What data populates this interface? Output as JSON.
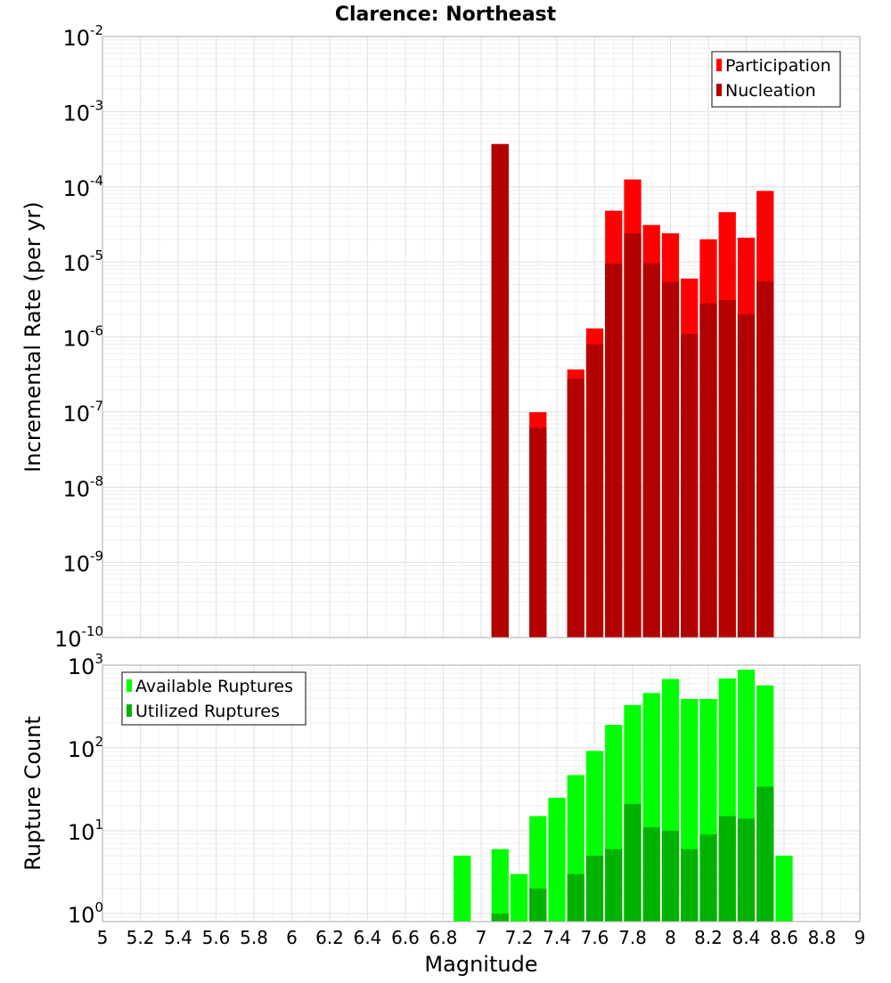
{
  "chart_data": [
    {
      "type": "bar",
      "title": "Clarence: Northeast",
      "xlabel": "",
      "ylabel": "Incremental Rate (per yr)",
      "yscale": "log",
      "ylim": [
        1e-10,
        0.01
      ],
      "xlim": [
        5,
        9
      ],
      "grid": true,
      "legend_position": "top-right",
      "y_tick_labels": [
        {
          "base": "10",
          "exp": "-10"
        },
        {
          "base": "10",
          "exp": "-9"
        },
        {
          "base": "10",
          "exp": "-8"
        },
        {
          "base": "10",
          "exp": "-7"
        },
        {
          "base": "10",
          "exp": "-6"
        },
        {
          "base": "10",
          "exp": "-5"
        },
        {
          "base": "10",
          "exp": "-4"
        },
        {
          "base": "10",
          "exp": "-3"
        },
        {
          "base": "10",
          "exp": "-2"
        }
      ],
      "series": [
        {
          "name": "Participation",
          "color": "#ff0000",
          "points": [
            [
              7.1,
              0.00037
            ],
            [
              7.3,
              1e-07
            ],
            [
              7.5,
              3.7e-07
            ],
            [
              7.6,
              1.3e-06
            ],
            [
              7.7,
              4.8e-05
            ],
            [
              7.8,
              0.000125
            ],
            [
              7.9,
              3.1e-05
            ],
            [
              8.0,
              2.4e-05
            ],
            [
              8.1,
              6e-06
            ],
            [
              8.2,
              2e-05
            ],
            [
              8.3,
              4.6e-05
            ],
            [
              8.4,
              2.1e-05
            ],
            [
              8.5,
              8.8e-05
            ]
          ]
        },
        {
          "name": "Nucleation",
          "color": "#b30000",
          "points": [
            [
              7.1,
              0.00037
            ],
            [
              7.3,
              6.2e-08
            ],
            [
              7.5,
              2.8e-07
            ],
            [
              7.6,
              8e-07
            ],
            [
              7.7,
              9.5e-06
            ],
            [
              7.8,
              2.4e-05
            ],
            [
              7.9,
              9.6e-06
            ],
            [
              8.0,
              5.4e-06
            ],
            [
              8.1,
              1.1e-06
            ],
            [
              8.2,
              2.8e-06
            ],
            [
              8.3,
              3.1e-06
            ],
            [
              8.4,
              2e-06
            ],
            [
              8.5,
              5.5e-06
            ]
          ]
        }
      ]
    },
    {
      "type": "bar",
      "title": "",
      "xlabel": "Magnitude",
      "ylabel": "Rupture Count",
      "yscale": "log",
      "ylim": [
        0.8,
        1000
      ],
      "xlim": [
        5,
        9
      ],
      "grid": true,
      "legend_position": "top-left",
      "x_tick_labels": [
        "5",
        "5.2",
        "5.4",
        "5.6",
        "5.8",
        "6",
        "6.2",
        "6.4",
        "6.6",
        "6.8",
        "7",
        "7.2",
        "7.4",
        "7.6",
        "7.8",
        "8",
        "8.2",
        "8.4",
        "8.6",
        "8.8",
        "9"
      ],
      "y_tick_labels": [
        {
          "base": "10",
          "exp": "0"
        },
        {
          "base": "10",
          "exp": "1"
        },
        {
          "base": "10",
          "exp": "2"
        },
        {
          "base": "10",
          "exp": "3"
        }
      ],
      "series": [
        {
          "name": "Available Ruptures",
          "color": "#00ff00",
          "points": [
            [
              6.9,
              5
            ],
            [
              7.1,
              6
            ],
            [
              7.2,
              3
            ],
            [
              7.3,
              15
            ],
            [
              7.4,
              25
            ],
            [
              7.5,
              47
            ],
            [
              7.6,
              92
            ],
            [
              7.7,
              190
            ],
            [
              7.8,
              330
            ],
            [
              7.9,
              460
            ],
            [
              8.0,
              680
            ],
            [
              8.1,
              390
            ],
            [
              8.2,
              390
            ],
            [
              8.3,
              690
            ],
            [
              8.4,
              880
            ],
            [
              8.5,
              570
            ],
            [
              8.6,
              5
            ]
          ]
        },
        {
          "name": "Utilized Ruptures",
          "color": "#00b300",
          "points": [
            [
              7.1,
              1
            ],
            [
              7.3,
              2
            ],
            [
              7.5,
              3
            ],
            [
              7.6,
              5
            ],
            [
              7.7,
              6
            ],
            [
              7.8,
              21
            ],
            [
              7.9,
              11
            ],
            [
              8.0,
              10
            ],
            [
              8.1,
              6
            ],
            [
              8.2,
              9
            ],
            [
              8.3,
              15
            ],
            [
              8.4,
              14
            ],
            [
              8.5,
              34
            ]
          ]
        }
      ]
    }
  ]
}
